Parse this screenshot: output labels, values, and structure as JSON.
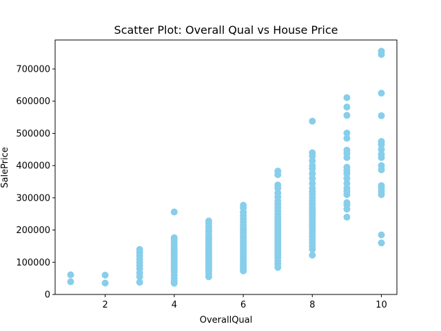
{
  "chart_data": {
    "type": "scatter",
    "title": "Scatter Plot: Overall Qual vs House Price",
    "xlabel": "OverallQual",
    "ylabel": "SalePrice",
    "xlim": [
      0.55,
      10.45
    ],
    "ylim": [
      0,
      790000
    ],
    "xticks": [
      2,
      4,
      6,
      8,
      10
    ],
    "yticks": [
      0,
      100000,
      200000,
      300000,
      400000,
      500000,
      600000,
      700000
    ],
    "grid": false,
    "legend": "none",
    "point_color": "#87ceeb",
    "series": [
      {
        "x": [
          1,
          1,
          2,
          2,
          3,
          3,
          3,
          3,
          3,
          3,
          3,
          3,
          3,
          3,
          4,
          4,
          4,
          4,
          4,
          4,
          4,
          4,
          4,
          4,
          4,
          4,
          4,
          4,
          4,
          4,
          4,
          4,
          4,
          4,
          4,
          5,
          5,
          5,
          5,
          5,
          5,
          5,
          5,
          5,
          5,
          5,
          5,
          5,
          5,
          5,
          5,
          5,
          5,
          5,
          5,
          5,
          5,
          5,
          5,
          6,
          6,
          6,
          6,
          6,
          6,
          6,
          6,
          6,
          6,
          6,
          6,
          6,
          6,
          6,
          6,
          6,
          6,
          6,
          6,
          6,
          6,
          6,
          6,
          6,
          6,
          6,
          6,
          7,
          7,
          7,
          7,
          7,
          7,
          7,
          7,
          7,
          7,
          7,
          7,
          7,
          7,
          7,
          7,
          7,
          7,
          7,
          7,
          7,
          7,
          7,
          7,
          7,
          7,
          7,
          7,
          7,
          7,
          7,
          7,
          8,
          8,
          8,
          8,
          8,
          8,
          8,
          8,
          8,
          8,
          8,
          8,
          8,
          8,
          8,
          8,
          8,
          8,
          8,
          8,
          8,
          8,
          8,
          8,
          8,
          8,
          8,
          8,
          8,
          8,
          8,
          8,
          9,
          9,
          9,
          9,
          9,
          9,
          9,
          9,
          9,
          9,
          9,
          9,
          9,
          9,
          9,
          9,
          9,
          9,
          9,
          9,
          10,
          10,
          10,
          10,
          10,
          10,
          10,
          10,
          10,
          10,
          10,
          10,
          10,
          10,
          10,
          10,
          10
        ],
        "y": [
          61000,
          39300,
          60000,
          35300,
          139600,
          130000,
          120000,
          110000,
          100000,
          90000,
          80000,
          67000,
          55000,
          37900,
          256000,
          176000,
          170000,
          160000,
          150000,
          143000,
          138000,
          132000,
          125000,
          118000,
          110000,
          104000,
          98000,
          92000,
          85000,
          78000,
          70000,
          60000,
          50000,
          40000,
          34900,
          228000,
          220000,
          210000,
          200000,
          195000,
          185000,
          178000,
          170000,
          162000,
          155000,
          148000,
          140000,
          133000,
          127000,
          120000,
          113000,
          106000,
          100000,
          93000,
          86000,
          80000,
          72000,
          64000,
          55000,
          277000,
          268000,
          255000,
          245000,
          235000,
          225000,
          215000,
          205000,
          198000,
          190000,
          182000,
          175000,
          168000,
          160000,
          152000,
          145000,
          138000,
          131000,
          124000,
          117000,
          110000,
          103000,
          96000,
          90000,
          85000,
          80000,
          76000,
          73000,
          383000,
          372000,
          340000,
          330000,
          315000,
          303000,
          290000,
          280000,
          270000,
          260000,
          250000,
          240000,
          232000,
          224000,
          216000,
          208000,
          200000,
          192000,
          185000,
          178000,
          170000,
          162000,
          155000,
          148000,
          141000,
          134000,
          127000,
          120000,
          115000,
          105000,
          95000,
          84000,
          538000,
          440000,
          430000,
          415000,
          400000,
          390000,
          375000,
          360000,
          345000,
          330000,
          320000,
          310000,
          300000,
          290000,
          280000,
          270000,
          262000,
          255000,
          247000,
          240000,
          232000,
          224000,
          216000,
          208000,
          200000,
          190000,
          180000,
          170000,
          160000,
          150000,
          140000,
          122000,
          611000,
          582000,
          556000,
          501000,
          485000,
          448000,
          438000,
          425000,
          395000,
          385000,
          375000,
          360000,
          345000,
          330000,
          320000,
          310000,
          285000,
          278000,
          265000,
          240000,
          755000,
          745000,
          625000,
          555000,
          475000,
          465000,
          450000,
          435000,
          425000,
          400000,
          387000,
          338000,
          330000,
          320000,
          310000,
          185000,
          160000
        ]
      }
    ]
  }
}
